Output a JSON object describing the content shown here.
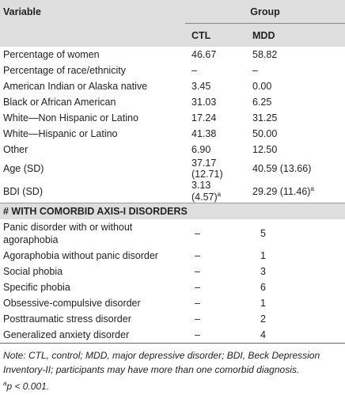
{
  "header": {
    "variable": "Variable",
    "group": "Group",
    "columns": [
      "CTL",
      "MDD"
    ]
  },
  "rows": [
    {
      "label": "Percentage of women",
      "ctl": "46.67",
      "mdd": "58.82"
    },
    {
      "label": "Percentage of race/ethnicity",
      "ctl": "–",
      "mdd": "–"
    },
    {
      "label": "American Indian or Alaska native",
      "ctl": "3.45",
      "mdd": "0.00"
    },
    {
      "label": "Black or African American",
      "ctl": "31.03",
      "mdd": "6.25"
    },
    {
      "label": "White—Non Hispanic or Latino",
      "ctl": "17.24",
      "mdd": "31.25"
    },
    {
      "label": "White—Hispanic or Latino",
      "ctl": "41.38",
      "mdd": "50.00"
    },
    {
      "label": "Other",
      "ctl": "6.90",
      "mdd": "12.50"
    },
    {
      "label": "Age (SD)",
      "ctl": "37.17 (12.71)",
      "mdd": "40.59 (13.66)"
    },
    {
      "label": "BDI (SD)",
      "ctl": "3.13 (4.57)",
      "ctl_sup": "a",
      "mdd": "29.29 (11.46)",
      "mdd_sup": "a"
    }
  ],
  "section": {
    "title": "# WITH COMORBID AXIS-I DISORDERS",
    "rows": [
      {
        "label": "Panic disorder with or without agoraphobia",
        "ctl": "–",
        "mdd": "5"
      },
      {
        "label": "Agoraphobia without panic disorder",
        "ctl": "–",
        "mdd": "1"
      },
      {
        "label": "Social phobia",
        "ctl": "–",
        "mdd": "3"
      },
      {
        "label": "Specific phobia",
        "ctl": "–",
        "mdd": "6"
      },
      {
        "label": "Obsessive-compulsive disorder",
        "ctl": "–",
        "mdd": "1"
      },
      {
        "label": "Posttraumatic stress disorder",
        "ctl": "–",
        "mdd": "2"
      },
      {
        "label": "Generalized anxiety disorder",
        "ctl": "–",
        "mdd": "4"
      }
    ]
  },
  "note": {
    "text": "Note: CTL, control; MDD, major depressive disorder; BDI, Beck Depression Inventory-II; participants may have more than one comorbid diagnosis.",
    "footnote_marker": "a",
    "footnote_text": "p < 0.001."
  }
}
